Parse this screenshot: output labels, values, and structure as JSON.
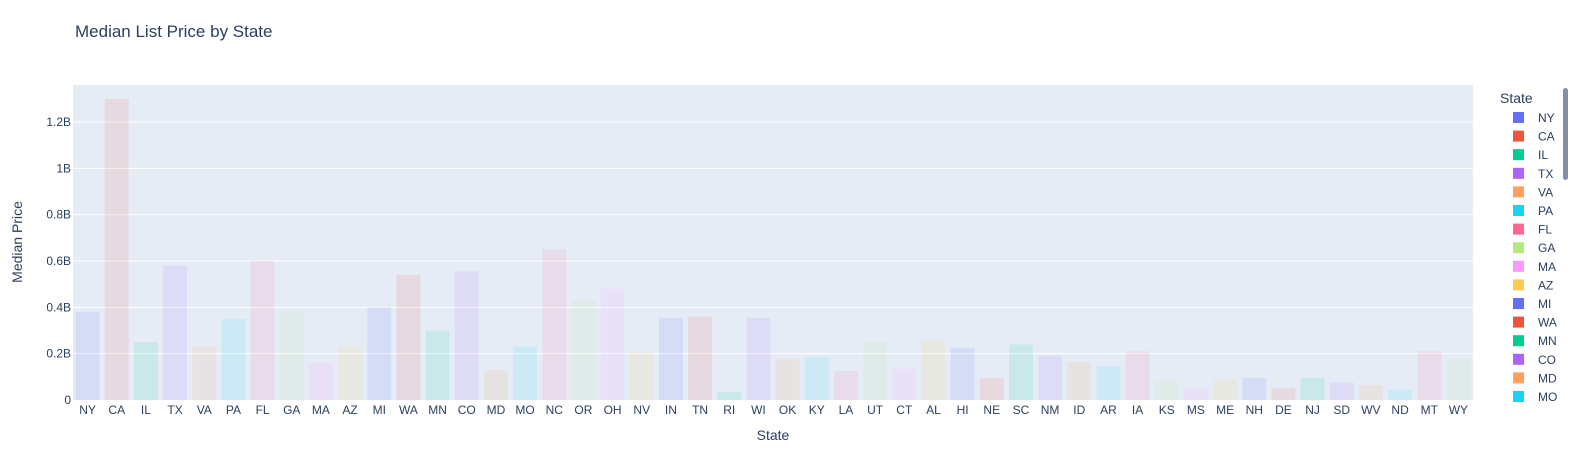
{
  "chart_data": {
    "type": "bar",
    "title": "Median List Price by State",
    "xlabel": "State",
    "ylabel": "Median Price",
    "legend_title": "State",
    "legend_placement": "right",
    "grid": true,
    "ylim": [
      0,
      1360000000
    ],
    "yticks": [
      {
        "value": 0,
        "label": "0"
      },
      {
        "value": 200000000,
        "label": "0.2B"
      },
      {
        "value": 400000000,
        "label": "0.4B"
      },
      {
        "value": 600000000,
        "label": "0.6B"
      },
      {
        "value": 800000000,
        "label": "0.8B"
      },
      {
        "value": 1000000000,
        "label": "1B"
      },
      {
        "value": 1200000000,
        "label": "1.2B"
      }
    ],
    "categories": [
      "NY",
      "CA",
      "IL",
      "TX",
      "VA",
      "PA",
      "FL",
      "GA",
      "MA",
      "AZ",
      "MI",
      "WA",
      "MN",
      "CO",
      "MD",
      "MO",
      "NC",
      "OR",
      "OH",
      "NV",
      "IN",
      "TN",
      "RI",
      "WI",
      "OK",
      "KY",
      "LA",
      "UT",
      "CT",
      "AL",
      "HI",
      "NE",
      "SC",
      "NM",
      "ID",
      "AR",
      "IA",
      "KS",
      "MS",
      "ME",
      "NH",
      "DE",
      "NJ",
      "SD",
      "WV",
      "ND",
      "MT",
      "WY"
    ],
    "values": [
      380000000,
      1300000000,
      250000000,
      580000000,
      230000000,
      350000000,
      600000000,
      380000000,
      160000000,
      230000000,
      400000000,
      540000000,
      300000000,
      555000000,
      130000000,
      230000000,
      650000000,
      430000000,
      480000000,
      210000000,
      355000000,
      360000000,
      35000000,
      355000000,
      180000000,
      185000000,
      125000000,
      250000000,
      135000000,
      260000000,
      225000000,
      95000000,
      240000000,
      190000000,
      165000000,
      145000000,
      210000000,
      80000000,
      50000000,
      90000000,
      95000000,
      50000000,
      95000000,
      75000000,
      65000000,
      45000000,
      210000000,
      175000000
    ],
    "colors": [
      "#636efa",
      "#EF553B",
      "#00cc96",
      "#ab63fa",
      "#FFA15A",
      "#19d3f3",
      "#FF6692",
      "#B6E880",
      "#FF97FF",
      "#FECB52"
    ],
    "bar_opacity": 0.12,
    "legend_entries": [
      "NY",
      "CA",
      "IL",
      "TX",
      "VA",
      "PA",
      "FL",
      "GA",
      "MA",
      "AZ",
      "MI",
      "WA",
      "MN",
      "CO",
      "MD",
      "MO"
    ]
  }
}
